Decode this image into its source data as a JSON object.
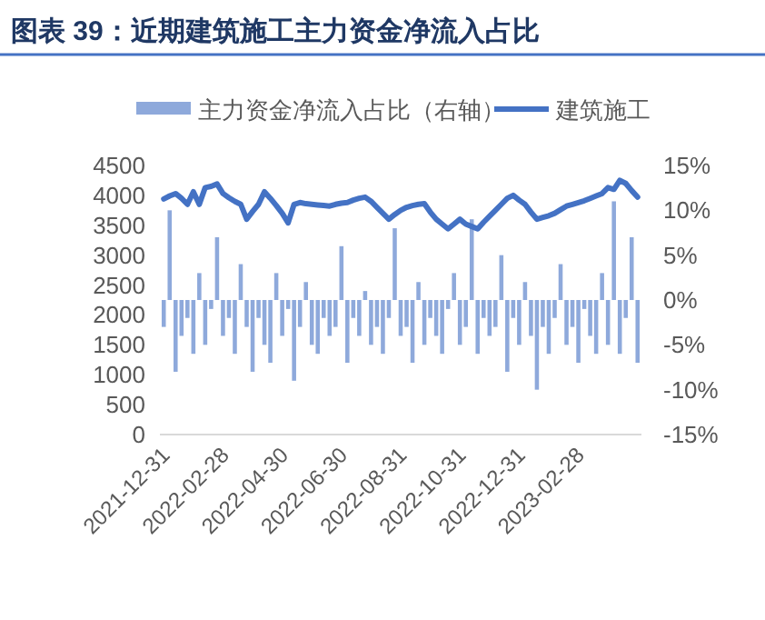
{
  "chart_data": {
    "type": "bar",
    "title": "图表 39：近期建筑施工主力资金净流入占比",
    "categories": [
      "2021-12-31",
      null,
      null,
      null,
      null,
      null,
      null,
      null,
      null,
      null,
      "2022-02-28",
      null,
      null,
      null,
      null,
      null,
      null,
      null,
      null,
      null,
      "2022-04-30",
      null,
      null,
      null,
      null,
      null,
      null,
      null,
      null,
      null,
      "2022-06-30",
      null,
      null,
      null,
      null,
      null,
      null,
      null,
      null,
      null,
      "2022-08-31",
      null,
      null,
      null,
      null,
      null,
      null,
      null,
      null,
      null,
      "2022-10-31",
      null,
      null,
      null,
      null,
      null,
      null,
      null,
      null,
      null,
      "2022-12-31",
      null,
      null,
      null,
      null,
      null,
      null,
      null,
      null,
      null,
      "2023-02-28",
      null,
      null,
      null,
      null,
      null,
      null,
      null,
      null,
      null,
      null
    ],
    "series": [
      {
        "name": "主力资金净流入占比（右轴）",
        "axis": "y2",
        "color": "#8ea9db",
        "values": [
          -3,
          10,
          -8,
          -4,
          -2,
          -6,
          3,
          -5,
          -1,
          7,
          -4,
          -2,
          -6,
          4,
          -3,
          -8,
          -2,
          -5,
          -7,
          3,
          -4,
          -1,
          -9,
          -3,
          2,
          -5,
          -6,
          -2,
          -4,
          -3,
          6,
          -7,
          -2,
          -4,
          1,
          -5,
          -3,
          -6,
          -2,
          8,
          -4,
          -3,
          -7,
          2,
          -5,
          -2,
          -4,
          -6,
          -1,
          3,
          -5,
          -3,
          9,
          -6,
          -2,
          -4,
          -3,
          5,
          -8,
          -2,
          -5,
          2,
          -4,
          -10,
          -3,
          -6,
          -2,
          4,
          -5,
          -3,
          -7,
          -1,
          -4,
          -6,
          3,
          -5,
          11,
          -6,
          -2,
          7,
          -7
        ]
      },
      {
        "name": "建筑施工",
        "type": "line",
        "color": "#4472c4",
        "values": [
          3940,
          3990,
          4030,
          3950,
          3850,
          4060,
          3850,
          4130,
          4150,
          4190,
          4030,
          3960,
          3900,
          3850,
          3600,
          3730,
          3850,
          4060,
          3950,
          3830,
          3700,
          3540,
          3850,
          3880,
          3860,
          3850,
          3840,
          3830,
          3820,
          3850,
          3870,
          3880,
          3920,
          3950,
          3970,
          3900,
          3800,
          3700,
          3600,
          3680,
          3750,
          3800,
          3830,
          3850,
          3860,
          3720,
          3600,
          3520,
          3440,
          3520,
          3600,
          3520,
          3480,
          3440,
          3550,
          3650,
          3750,
          3850,
          3950,
          4000,
          3920,
          3850,
          3720,
          3600,
          3630,
          3660,
          3700,
          3760,
          3820,
          3850,
          3880,
          3910,
          3950,
          3990,
          4030,
          4130,
          4100,
          4250,
          4200,
          4080,
          3970
        ]
      }
    ],
    "ylim": [
      0,
      4500
    ],
    "yticks": [
      0,
      500,
      1000,
      1500,
      2000,
      2500,
      3000,
      3500,
      4000,
      4500
    ],
    "y2lim": [
      -15,
      15
    ],
    "y2ticks": [
      {
        "value": -15,
        "label": "-15%"
      },
      {
        "value": -10,
        "label": "-10%"
      },
      {
        "value": -5,
        "label": "-5%"
      },
      {
        "value": 0,
        "label": "0%"
      },
      {
        "value": 5,
        "label": "5%"
      },
      {
        "value": 10,
        "label": "10%"
      },
      {
        "value": 15,
        "label": "15%"
      }
    ],
    "grid": false,
    "legend": "top"
  }
}
